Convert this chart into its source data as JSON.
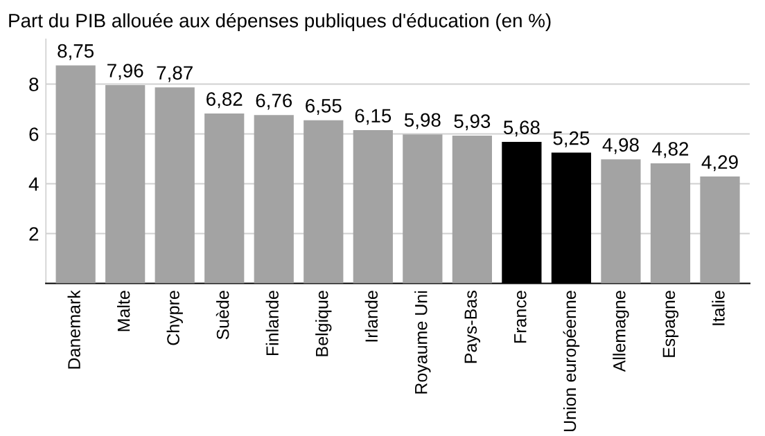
{
  "chart_data": {
    "type": "bar",
    "title": "Part du PIB allouée aux dépenses publiques d'éducation (en %)",
    "categories": [
      "Danemark",
      "Malte",
      "Chypre",
      "Suède",
      "Finlande",
      "Belgique",
      "Irlande",
      "Royaume Uni",
      "Pays-Bas",
      "France",
      "Union européenne",
      "Allemagne",
      "Espagne",
      "Italie"
    ],
    "values": [
      8.75,
      7.96,
      7.87,
      6.82,
      6.76,
      6.55,
      6.15,
      5.98,
      5.93,
      5.68,
      5.25,
      4.98,
      4.82,
      4.29
    ],
    "value_labels": [
      "8,75",
      "7,96",
      "7,87",
      "6,82",
      "6,76",
      "6,55",
      "6,15",
      "5,98",
      "5,93",
      "5,68",
      "5,25",
      "4,98",
      "4,82",
      "4,29"
    ],
    "colors": [
      "#a3a3a3",
      "#a3a3a3",
      "#a3a3a3",
      "#a3a3a3",
      "#a3a3a3",
      "#a3a3a3",
      "#a3a3a3",
      "#a3a3a3",
      "#a3a3a3",
      "#000000",
      "#000000",
      "#a3a3a3",
      "#a3a3a3",
      "#a3a3a3"
    ],
    "ylim": [
      0,
      9.8
    ],
    "yticks": [
      2,
      4,
      6,
      8
    ],
    "grid": "y"
  }
}
